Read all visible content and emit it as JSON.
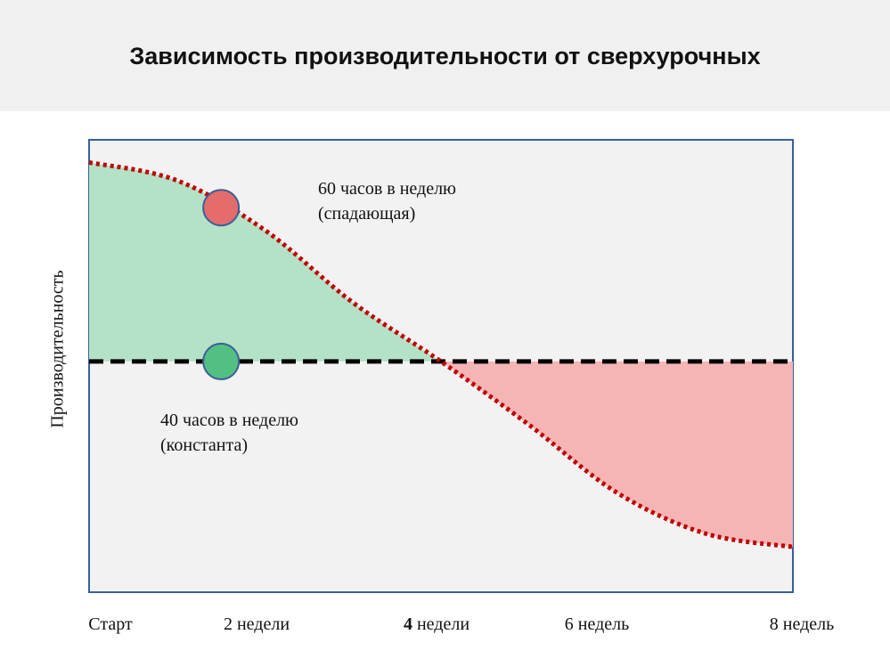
{
  "title": "Зависимость производительности от сверхурочных",
  "colors": {
    "header_bg": "#f0f0f0",
    "plot_bg": "#f2f2f3",
    "plot_border": "#3a5f9a",
    "gain_fill": "#b3e2c6",
    "loss_fill": "#f5b5b5",
    "falling_line": "#c00000",
    "constant_line": "#000000",
    "marker_red": "#e46c6c",
    "marker_green": "#52c080",
    "marker_border": "#3a5f9a"
  },
  "chart_data": {
    "type": "line",
    "xlabel": "",
    "ylabel": "Производительность",
    "x_ticks": [
      {
        "x": 0,
        "num": "",
        "word": "Старт"
      },
      {
        "x": 2,
        "num": "2",
        "word": "недели"
      },
      {
        "x": 4,
        "num": "4",
        "word": "недели"
      },
      {
        "x": 6,
        "num": "6",
        "word": "недель"
      },
      {
        "x": 8,
        "num": "8",
        "word": "недель"
      }
    ],
    "xlim": [
      0,
      8
    ],
    "ylim": [
      0,
      1
    ],
    "series": [
      {
        "name": "60 часов в неделю (спадающая)",
        "style": "dotted",
        "points": [
          [
            0,
            0.95
          ],
          [
            1,
            0.91
          ],
          [
            2,
            0.8
          ],
          [
            3,
            0.64
          ],
          [
            4,
            0.51
          ],
          [
            5,
            0.37
          ],
          [
            6,
            0.22
          ],
          [
            7,
            0.13
          ],
          [
            8,
            0.1
          ]
        ]
      },
      {
        "name": "40 часов в неделю (константа)",
        "style": "dashed",
        "points": [
          [
            0,
            0.51
          ],
          [
            8,
            0.51
          ]
        ]
      }
    ],
    "markers": [
      {
        "series": 0,
        "x": 1.5,
        "y": 0.85,
        "color": "red"
      },
      {
        "series": 1,
        "x": 1.5,
        "y": 0.51,
        "color": "green"
      }
    ],
    "annotations": [
      {
        "lines": [
          "60 часов в неделю",
          "(спадающая)"
        ]
      },
      {
        "lines": [
          "40 часов в неделю",
          "(константа)"
        ]
      }
    ]
  }
}
